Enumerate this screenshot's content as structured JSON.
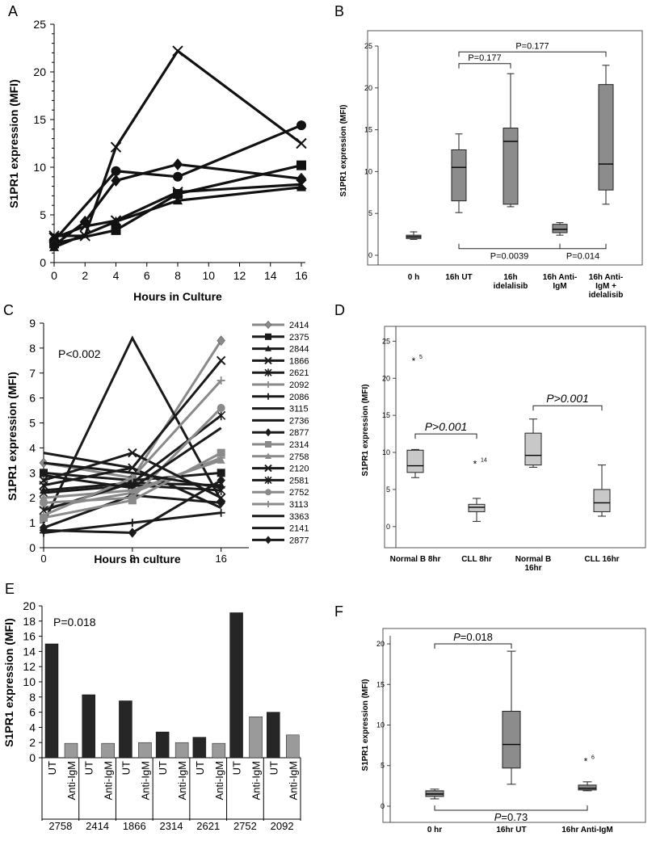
{
  "colors": {
    "dark": "#1a1a1a",
    "gray": "#8a8a8a",
    "box": "#8c8c8c",
    "lightbox": "#c8c8c8",
    "bar_ut": "#262626",
    "bar_igm": "#9a9a9a"
  },
  "panels": {
    "A": {
      "letter": "A",
      "type": "line",
      "xlabel": "Hours in Culture",
      "ylabel": "S1PR1 expression (MFI)",
      "xlim": [
        0,
        16
      ],
      "ylim": [
        0,
        25
      ],
      "xticks": [
        "0",
        "2",
        "4",
        "6",
        "8",
        "10",
        "12",
        "14",
        "16"
      ],
      "yticks": [
        "0",
        "5",
        "10",
        "15",
        "20",
        "25"
      ],
      "series": [
        {
          "name": "cross",
          "marker": "x",
          "x": [
            0,
            2,
            4,
            8,
            16
          ],
          "y": [
            2.8,
            2.8,
            12.1,
            22.2,
            12.5
          ]
        },
        {
          "name": "circle",
          "marker": "circle",
          "x": [
            0,
            4,
            8,
            16
          ],
          "y": [
            2.3,
            9.6,
            9.0,
            14.4
          ]
        },
        {
          "name": "square",
          "marker": "square",
          "x": [
            0,
            4,
            8,
            16
          ],
          "y": [
            2.0,
            3.4,
            7.2,
            10.2
          ]
        },
        {
          "name": "diamond",
          "marker": "diamond",
          "x": [
            0,
            2,
            4,
            8,
            16
          ],
          "y": [
            1.8,
            4.3,
            8.6,
            10.3,
            8.8
          ]
        },
        {
          "name": "star",
          "marker": "x",
          "x": [
            0,
            2,
            4,
            8,
            16
          ],
          "y": [
            2.6,
            3.8,
            4.4,
            7.4,
            8.2
          ]
        },
        {
          "name": "triangle",
          "marker": "triangle",
          "x": [
            0,
            4,
            8,
            16
          ],
          "y": [
            1.6,
            4.3,
            6.5,
            7.9
          ]
        }
      ]
    },
    "B": {
      "letter": "B",
      "type": "box",
      "ylabel": "S1PR1 expression (MFI)",
      "ylim": [
        0,
        25
      ],
      "yticks": [
        "0",
        "5",
        "10",
        "15",
        "20",
        "25"
      ],
      "categories": [
        [
          "0 h"
        ],
        [
          "16h UT"
        ],
        [
          "16h",
          "idelalisib"
        ],
        [
          "16h Anti-",
          "IgM"
        ],
        [
          "16h Anti-",
          "IgM +",
          "idelalisib"
        ]
      ],
      "boxes": [
        {
          "min": 1.9,
          "q1": 2.0,
          "median": 2.2,
          "q3": 2.4,
          "max": 2.8
        },
        {
          "min": 5.1,
          "q1": 6.5,
          "median": 10.5,
          "q3": 12.6,
          "max": 14.5
        },
        {
          "min": 5.8,
          "q1": 6.1,
          "median": 13.6,
          "q3": 15.2,
          "max": 21.7
        },
        {
          "min": 2.4,
          "q1": 2.7,
          "median": 3.1,
          "q3": 3.7,
          "max": 3.9
        },
        {
          "min": 6.1,
          "q1": 7.8,
          "median": 10.9,
          "q3": 20.4,
          "max": 22.7
        }
      ],
      "annotations": [
        {
          "text": "P=0.177",
          "from": 1,
          "to": 2,
          "y": 22.9,
          "side": "top"
        },
        {
          "text": "P=0.177",
          "from": 1,
          "to": 4,
          "y": 24.3,
          "side": "top"
        },
        {
          "text": "P=0.0039",
          "from": 1,
          "to": 3,
          "y": 0.8,
          "side": "bottom"
        },
        {
          "text": "P=0.014",
          "from": 3,
          "to": 4,
          "y": 0.8,
          "side": "bottom"
        }
      ]
    },
    "C": {
      "letter": "C",
      "type": "line",
      "xlabel": "Hours in culture",
      "ylabel": "S1PR1 expression (MFI)",
      "annotation": "P<0.002",
      "xlim": [
        0,
        18.5
      ],
      "ylim": [
        0,
        9
      ],
      "xticks": [
        "0",
        "8",
        "16"
      ],
      "yticks": [
        "0",
        "1",
        "2",
        "3",
        "4",
        "5",
        "6",
        "7",
        "8",
        "9"
      ],
      "series": [
        {
          "name": "2414",
          "color": "gray",
          "marker": "diamond",
          "y": [
            3.4,
            2.8,
            8.3
          ]
        },
        {
          "name": "2375",
          "color": "dark",
          "marker": "square",
          "y": [
            3.0,
            2.7,
            3.0
          ]
        },
        {
          "name": "2844",
          "color": "dark",
          "marker": "triangle",
          "y": [
            2.3,
            2.6,
            2.5
          ]
        },
        {
          "name": "1866",
          "color": "dark",
          "marker": "x",
          "y": [
            2.5,
            3.2,
            7.5
          ]
        },
        {
          "name": "2621",
          "color": "dark",
          "marker": "star",
          "y": [
            2.2,
            2.5,
            2.3
          ]
        },
        {
          "name": "2092",
          "color": "gray",
          "marker": "plus",
          "y": [
            1.6,
            2.2,
            3.6
          ]
        },
        {
          "name": "2086",
          "color": "dark",
          "marker": "plus",
          "y": [
            0.6,
            1.0,
            1.4
          ]
        },
        {
          "name": "3115",
          "color": "dark",
          "marker": "none",
          "y": [
            3.8,
            3.2,
            1.6
          ]
        },
        {
          "name": "2736",
          "color": "dark",
          "marker": "none",
          "y": [
            1.0,
            8.4,
            1.9
          ]
        },
        {
          "name": "2877",
          "color": "dark",
          "marker": "diamond",
          "y": [
            0.8,
            2.1,
            1.8
          ]
        },
        {
          "name": "2314",
          "color": "gray",
          "marker": "square",
          "y": [
            1.2,
            1.9,
            3.8
          ]
        },
        {
          "name": "2758",
          "color": "gray",
          "marker": "triangle",
          "y": [
            2.0,
            2.3,
            3.5
          ]
        },
        {
          "name": "2120",
          "color": "dark",
          "marker": "x",
          "y": [
            2.7,
            3.8,
            2.0
          ]
        },
        {
          "name": "2581",
          "color": "dark",
          "marker": "star",
          "y": [
            1.5,
            2.6,
            5.3
          ]
        },
        {
          "name": "2752",
          "color": "gray",
          "marker": "circle",
          "y": [
            1.8,
            2.0,
            5.6
          ]
        },
        {
          "name": "3113",
          "color": "gray",
          "marker": "plus",
          "y": [
            1.3,
            2.8,
            6.7
          ]
        },
        {
          "name": "3363",
          "color": "dark",
          "marker": "none",
          "y": [
            2.9,
            2.4,
            4.8
          ]
        },
        {
          "name": "2141",
          "color": "dark",
          "marker": "none",
          "y": [
            3.4,
            3.0,
            2.4
          ]
        },
        {
          "name": "2877",
          "color": "dark",
          "marker": "diamond",
          "y": [
            0.7,
            0.6,
            2.7
          ]
        }
      ],
      "x": [
        0,
        8,
        16
      ]
    },
    "D": {
      "letter": "D",
      "type": "box",
      "ylabel": "S1PR1 expression (MFI)",
      "ylim": [
        -1,
        27
      ],
      "yticks": [
        "0",
        "5",
        "10",
        "15",
        "20",
        "25"
      ],
      "categories": [
        [
          "Normal B 8hr"
        ],
        [
          "CLL 8hr"
        ],
        [
          "Normal B",
          "16hr"
        ],
        [
          "CLL 16hr"
        ]
      ],
      "boxes": [
        {
          "min": 6.6,
          "q1": 7.3,
          "median": 8.2,
          "q3": 10.3,
          "max": 10.4,
          "outlier": 22.3,
          "outlier_label": "5"
        },
        {
          "min": 0.7,
          "q1": 2.0,
          "median": 2.6,
          "q3": 3.0,
          "max": 3.8,
          "outlier": 8.4,
          "outlier_label": "14"
        },
        {
          "min": 8.0,
          "q1": 8.3,
          "median": 9.6,
          "q3": 12.6,
          "max": 14.5
        },
        {
          "min": 1.4,
          "q1": 2.0,
          "median": 3.2,
          "q3": 5.0,
          "max": 8.3
        }
      ],
      "annotations": [
        {
          "text": "P>0.001",
          "from": 0,
          "to": 1,
          "y": 12.5
        },
        {
          "text": "P>0.001",
          "from": 2,
          "to": 3,
          "y": 16.3
        }
      ]
    },
    "E": {
      "letter": "E",
      "type": "bar",
      "ylabel": "S1PR1 expression (MFI)",
      "annotation": "P=0.018",
      "ylim": [
        0,
        20
      ],
      "yticks": [
        "0",
        "2",
        "4",
        "6",
        "8",
        "10",
        "12",
        "14",
        "16",
        "18",
        "20"
      ],
      "bar_labels": [
        "UT",
        "Anti-IgM"
      ],
      "groups": [
        "2758",
        "2414",
        "1866",
        "2314",
        "2621",
        "2752",
        "2092"
      ],
      "series": [
        {
          "name": "UT",
          "values": [
            15.0,
            8.3,
            7.5,
            3.4,
            2.7,
            19.1,
            6.0
          ]
        },
        {
          "name": "Anti-IgM",
          "values": [
            1.9,
            1.9,
            2.0,
            2.0,
            1.9,
            5.4,
            3.0
          ]
        }
      ]
    },
    "F": {
      "letter": "F",
      "type": "box",
      "ylabel": "S1PR1 expression (MFI)",
      "ylim": [
        -1,
        21
      ],
      "yticks": [
        "0",
        "5",
        "10",
        "15",
        "20"
      ],
      "categories": [
        [
          "0 hr"
        ],
        [
          "16hr UT"
        ],
        [
          "16hr Anti-IgM"
        ]
      ],
      "boxes": [
        {
          "min": 0.9,
          "q1": 1.2,
          "median": 1.5,
          "q3": 1.9,
          "max": 2.1
        },
        {
          "min": 2.7,
          "q1": 4.7,
          "median": 7.6,
          "q3": 11.7,
          "max": 19.1
        },
        {
          "min": 1.9,
          "q1": 2.0,
          "median": 2.2,
          "q3": 2.6,
          "max": 3.0,
          "outlier": 5.5,
          "outlier_label": "6"
        }
      ],
      "annotations": [
        {
          "italic": "P",
          "text": "=0.018",
          "from": 0,
          "to": 1,
          "y": 20.0,
          "side": "top"
        },
        {
          "italic": "P",
          "text": "=0.73",
          "from": 0,
          "to": 2,
          "y": -0.5,
          "side": "bottom"
        }
      ]
    }
  }
}
